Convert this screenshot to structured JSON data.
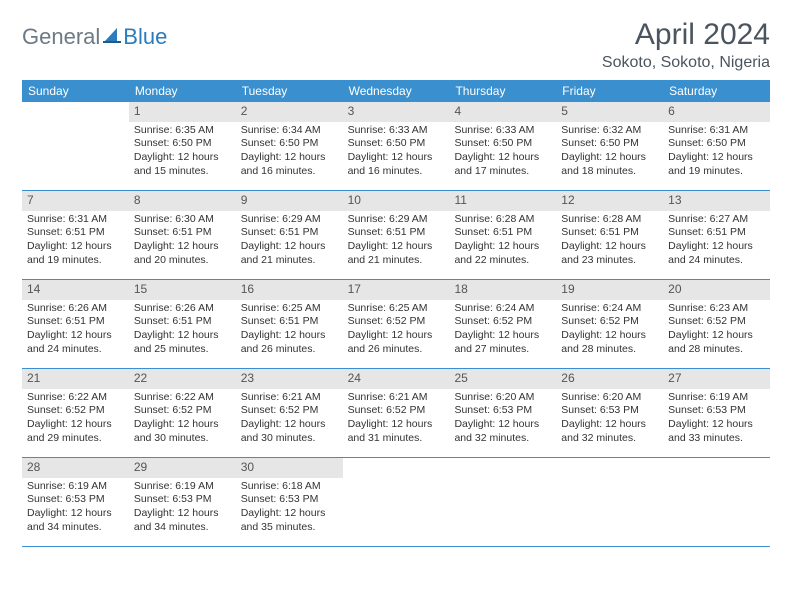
{
  "brand": {
    "part1": "General",
    "part2": "Blue"
  },
  "header": {
    "month_title": "April 2024",
    "location": "Sokoto, Sokoto, Nigeria"
  },
  "style": {
    "accent_color": "#3a8fce",
    "daynum_bg": "#e6e6e6",
    "text_color": "#333333",
    "header_text_color": "#4a5560",
    "logo_gray": "#6c7a85",
    "logo_blue": "#2b7bbf",
    "background": "#ffffff",
    "month_title_fontsize": 30,
    "location_fontsize": 16,
    "weekday_fontsize": 12,
    "daynum_fontsize": 12,
    "body_fontsize": 10.5
  },
  "weekdays": [
    "Sunday",
    "Monday",
    "Tuesday",
    "Wednesday",
    "Thursday",
    "Friday",
    "Saturday"
  ],
  "weeks": [
    [
      {
        "num": "",
        "sunrise": "",
        "sunset": "",
        "daylight1": "",
        "daylight2": ""
      },
      {
        "num": "1",
        "sunrise": "Sunrise: 6:35 AM",
        "sunset": "Sunset: 6:50 PM",
        "daylight1": "Daylight: 12 hours",
        "daylight2": "and 15 minutes."
      },
      {
        "num": "2",
        "sunrise": "Sunrise: 6:34 AM",
        "sunset": "Sunset: 6:50 PM",
        "daylight1": "Daylight: 12 hours",
        "daylight2": "and 16 minutes."
      },
      {
        "num": "3",
        "sunrise": "Sunrise: 6:33 AM",
        "sunset": "Sunset: 6:50 PM",
        "daylight1": "Daylight: 12 hours",
        "daylight2": "and 16 minutes."
      },
      {
        "num": "4",
        "sunrise": "Sunrise: 6:33 AM",
        "sunset": "Sunset: 6:50 PM",
        "daylight1": "Daylight: 12 hours",
        "daylight2": "and 17 minutes."
      },
      {
        "num": "5",
        "sunrise": "Sunrise: 6:32 AM",
        "sunset": "Sunset: 6:50 PM",
        "daylight1": "Daylight: 12 hours",
        "daylight2": "and 18 minutes."
      },
      {
        "num": "6",
        "sunrise": "Sunrise: 6:31 AM",
        "sunset": "Sunset: 6:50 PM",
        "daylight1": "Daylight: 12 hours",
        "daylight2": "and 19 minutes."
      }
    ],
    [
      {
        "num": "7",
        "sunrise": "Sunrise: 6:31 AM",
        "sunset": "Sunset: 6:51 PM",
        "daylight1": "Daylight: 12 hours",
        "daylight2": "and 19 minutes."
      },
      {
        "num": "8",
        "sunrise": "Sunrise: 6:30 AM",
        "sunset": "Sunset: 6:51 PM",
        "daylight1": "Daylight: 12 hours",
        "daylight2": "and 20 minutes."
      },
      {
        "num": "9",
        "sunrise": "Sunrise: 6:29 AM",
        "sunset": "Sunset: 6:51 PM",
        "daylight1": "Daylight: 12 hours",
        "daylight2": "and 21 minutes."
      },
      {
        "num": "10",
        "sunrise": "Sunrise: 6:29 AM",
        "sunset": "Sunset: 6:51 PM",
        "daylight1": "Daylight: 12 hours",
        "daylight2": "and 21 minutes."
      },
      {
        "num": "11",
        "sunrise": "Sunrise: 6:28 AM",
        "sunset": "Sunset: 6:51 PM",
        "daylight1": "Daylight: 12 hours",
        "daylight2": "and 22 minutes."
      },
      {
        "num": "12",
        "sunrise": "Sunrise: 6:28 AM",
        "sunset": "Sunset: 6:51 PM",
        "daylight1": "Daylight: 12 hours",
        "daylight2": "and 23 minutes."
      },
      {
        "num": "13",
        "sunrise": "Sunrise: 6:27 AM",
        "sunset": "Sunset: 6:51 PM",
        "daylight1": "Daylight: 12 hours",
        "daylight2": "and 24 minutes."
      }
    ],
    [
      {
        "num": "14",
        "sunrise": "Sunrise: 6:26 AM",
        "sunset": "Sunset: 6:51 PM",
        "daylight1": "Daylight: 12 hours",
        "daylight2": "and 24 minutes."
      },
      {
        "num": "15",
        "sunrise": "Sunrise: 6:26 AM",
        "sunset": "Sunset: 6:51 PM",
        "daylight1": "Daylight: 12 hours",
        "daylight2": "and 25 minutes."
      },
      {
        "num": "16",
        "sunrise": "Sunrise: 6:25 AM",
        "sunset": "Sunset: 6:51 PM",
        "daylight1": "Daylight: 12 hours",
        "daylight2": "and 26 minutes."
      },
      {
        "num": "17",
        "sunrise": "Sunrise: 6:25 AM",
        "sunset": "Sunset: 6:52 PM",
        "daylight1": "Daylight: 12 hours",
        "daylight2": "and 26 minutes."
      },
      {
        "num": "18",
        "sunrise": "Sunrise: 6:24 AM",
        "sunset": "Sunset: 6:52 PM",
        "daylight1": "Daylight: 12 hours",
        "daylight2": "and 27 minutes."
      },
      {
        "num": "19",
        "sunrise": "Sunrise: 6:24 AM",
        "sunset": "Sunset: 6:52 PM",
        "daylight1": "Daylight: 12 hours",
        "daylight2": "and 28 minutes."
      },
      {
        "num": "20",
        "sunrise": "Sunrise: 6:23 AM",
        "sunset": "Sunset: 6:52 PM",
        "daylight1": "Daylight: 12 hours",
        "daylight2": "and 28 minutes."
      }
    ],
    [
      {
        "num": "21",
        "sunrise": "Sunrise: 6:22 AM",
        "sunset": "Sunset: 6:52 PM",
        "daylight1": "Daylight: 12 hours",
        "daylight2": "and 29 minutes."
      },
      {
        "num": "22",
        "sunrise": "Sunrise: 6:22 AM",
        "sunset": "Sunset: 6:52 PM",
        "daylight1": "Daylight: 12 hours",
        "daylight2": "and 30 minutes."
      },
      {
        "num": "23",
        "sunrise": "Sunrise: 6:21 AM",
        "sunset": "Sunset: 6:52 PM",
        "daylight1": "Daylight: 12 hours",
        "daylight2": "and 30 minutes."
      },
      {
        "num": "24",
        "sunrise": "Sunrise: 6:21 AM",
        "sunset": "Sunset: 6:52 PM",
        "daylight1": "Daylight: 12 hours",
        "daylight2": "and 31 minutes."
      },
      {
        "num": "25",
        "sunrise": "Sunrise: 6:20 AM",
        "sunset": "Sunset: 6:53 PM",
        "daylight1": "Daylight: 12 hours",
        "daylight2": "and 32 minutes."
      },
      {
        "num": "26",
        "sunrise": "Sunrise: 6:20 AM",
        "sunset": "Sunset: 6:53 PM",
        "daylight1": "Daylight: 12 hours",
        "daylight2": "and 32 minutes."
      },
      {
        "num": "27",
        "sunrise": "Sunrise: 6:19 AM",
        "sunset": "Sunset: 6:53 PM",
        "daylight1": "Daylight: 12 hours",
        "daylight2": "and 33 minutes."
      }
    ],
    [
      {
        "num": "28",
        "sunrise": "Sunrise: 6:19 AM",
        "sunset": "Sunset: 6:53 PM",
        "daylight1": "Daylight: 12 hours",
        "daylight2": "and 34 minutes."
      },
      {
        "num": "29",
        "sunrise": "Sunrise: 6:19 AM",
        "sunset": "Sunset: 6:53 PM",
        "daylight1": "Daylight: 12 hours",
        "daylight2": "and 34 minutes."
      },
      {
        "num": "30",
        "sunrise": "Sunrise: 6:18 AM",
        "sunset": "Sunset: 6:53 PM",
        "daylight1": "Daylight: 12 hours",
        "daylight2": "and 35 minutes."
      },
      {
        "num": "",
        "sunrise": "",
        "sunset": "",
        "daylight1": "",
        "daylight2": ""
      },
      {
        "num": "",
        "sunrise": "",
        "sunset": "",
        "daylight1": "",
        "daylight2": ""
      },
      {
        "num": "",
        "sunrise": "",
        "sunset": "",
        "daylight1": "",
        "daylight2": ""
      },
      {
        "num": "",
        "sunrise": "",
        "sunset": "",
        "daylight1": "",
        "daylight2": ""
      }
    ]
  ]
}
